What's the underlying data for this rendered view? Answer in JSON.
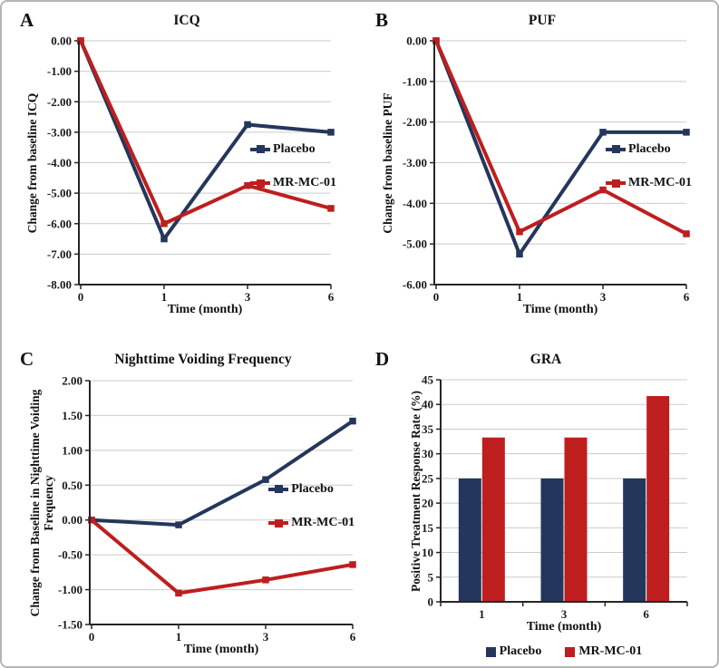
{
  "figure": {
    "background": "#ffffff",
    "border_color": "#b5b5b5",
    "grid_color": "#cbcbcb",
    "axis_color": "#262626",
    "series_colors": {
      "placebo": "#24365C",
      "mr_mc_01": "#BE1E1E"
    }
  },
  "chart_data": [
    {
      "letter": "A",
      "title": "ICQ",
      "type": "line",
      "xlabel": "Time (month)",
      "ylabel": "Change from baseline ICQ",
      "x_categories": [
        "0",
        "1",
        "3",
        "6"
      ],
      "y_ticks": [
        "0.00",
        "-1.00",
        "-2.00",
        "-3.00",
        "-4.00",
        "-5.00",
        "-6.00",
        "-7.00",
        "-8.00"
      ],
      "ylim": [
        -8,
        0
      ],
      "grid": true,
      "legend_position": "inside-right",
      "series": [
        {
          "name": "Placebo",
          "color": "#24365C",
          "values": [
            0,
            -6.5,
            -2.75,
            -3.0
          ]
        },
        {
          "name": "MR-MC-01",
          "color": "#BE1E1E",
          "values": [
            0,
            -6.0,
            -4.75,
            -5.5
          ]
        }
      ]
    },
    {
      "letter": "B",
      "title": "PUF",
      "type": "line",
      "xlabel": "Time (month)",
      "ylabel": "Change from baseline PUF",
      "x_categories": [
        "0",
        "1",
        "3",
        "6"
      ],
      "y_ticks": [
        "0.00",
        "-1.00",
        "-2.00",
        "-3.00",
        "-4.00",
        "-5.00",
        "-6.00"
      ],
      "ylim": [
        -6,
        0
      ],
      "grid": true,
      "legend_position": "inside-right",
      "series": [
        {
          "name": "Placebo",
          "color": "#24365C",
          "values": [
            0,
            -5.25,
            -2.25,
            -2.25
          ]
        },
        {
          "name": "MR-MC-01",
          "color": "#BE1E1E",
          "values": [
            0,
            -4.7,
            -3.67,
            -4.75
          ]
        }
      ]
    },
    {
      "letter": "C",
      "title": "Nighttime Voiding Frequency",
      "type": "line",
      "xlabel": "Time (month)",
      "ylabel": "Change from Baseline in Nighttime Voiding Frequency",
      "x_categories": [
        "0",
        "1",
        "3",
        "6"
      ],
      "y_ticks": [
        "2.00",
        "1.50",
        "1.00",
        "0.50",
        "0.00",
        "-0.50",
        "-1.00",
        "-1.50"
      ],
      "ylim": [
        -1.5,
        2
      ],
      "grid": true,
      "legend_position": "inside-right",
      "series": [
        {
          "name": "Placebo",
          "color": "#24365C",
          "values": [
            0,
            -0.07,
            0.58,
            1.42
          ]
        },
        {
          "name": "MR-MC-01",
          "color": "#BE1E1E",
          "values": [
            0,
            -1.05,
            -0.86,
            -0.64
          ]
        }
      ]
    },
    {
      "letter": "D",
      "title": "GRA",
      "type": "bar",
      "xlabel": "Time (month)",
      "ylabel": "Positive Treatment Response Rate (%)",
      "x_categories": [
        "1",
        "3",
        "6"
      ],
      "y_ticks": [
        "45",
        "40",
        "35",
        "30",
        "25",
        "20",
        "15",
        "10",
        "5",
        "0"
      ],
      "ylim": [
        0,
        45
      ],
      "grid": true,
      "legend_position": "bottom",
      "series": [
        {
          "name": "Placebo",
          "color": "#24365C",
          "values": [
            25,
            25,
            25
          ]
        },
        {
          "name": "MR-MC-01",
          "color": "#BE1E1E",
          "values": [
            33.3,
            33.3,
            41.7
          ]
        }
      ]
    }
  ]
}
